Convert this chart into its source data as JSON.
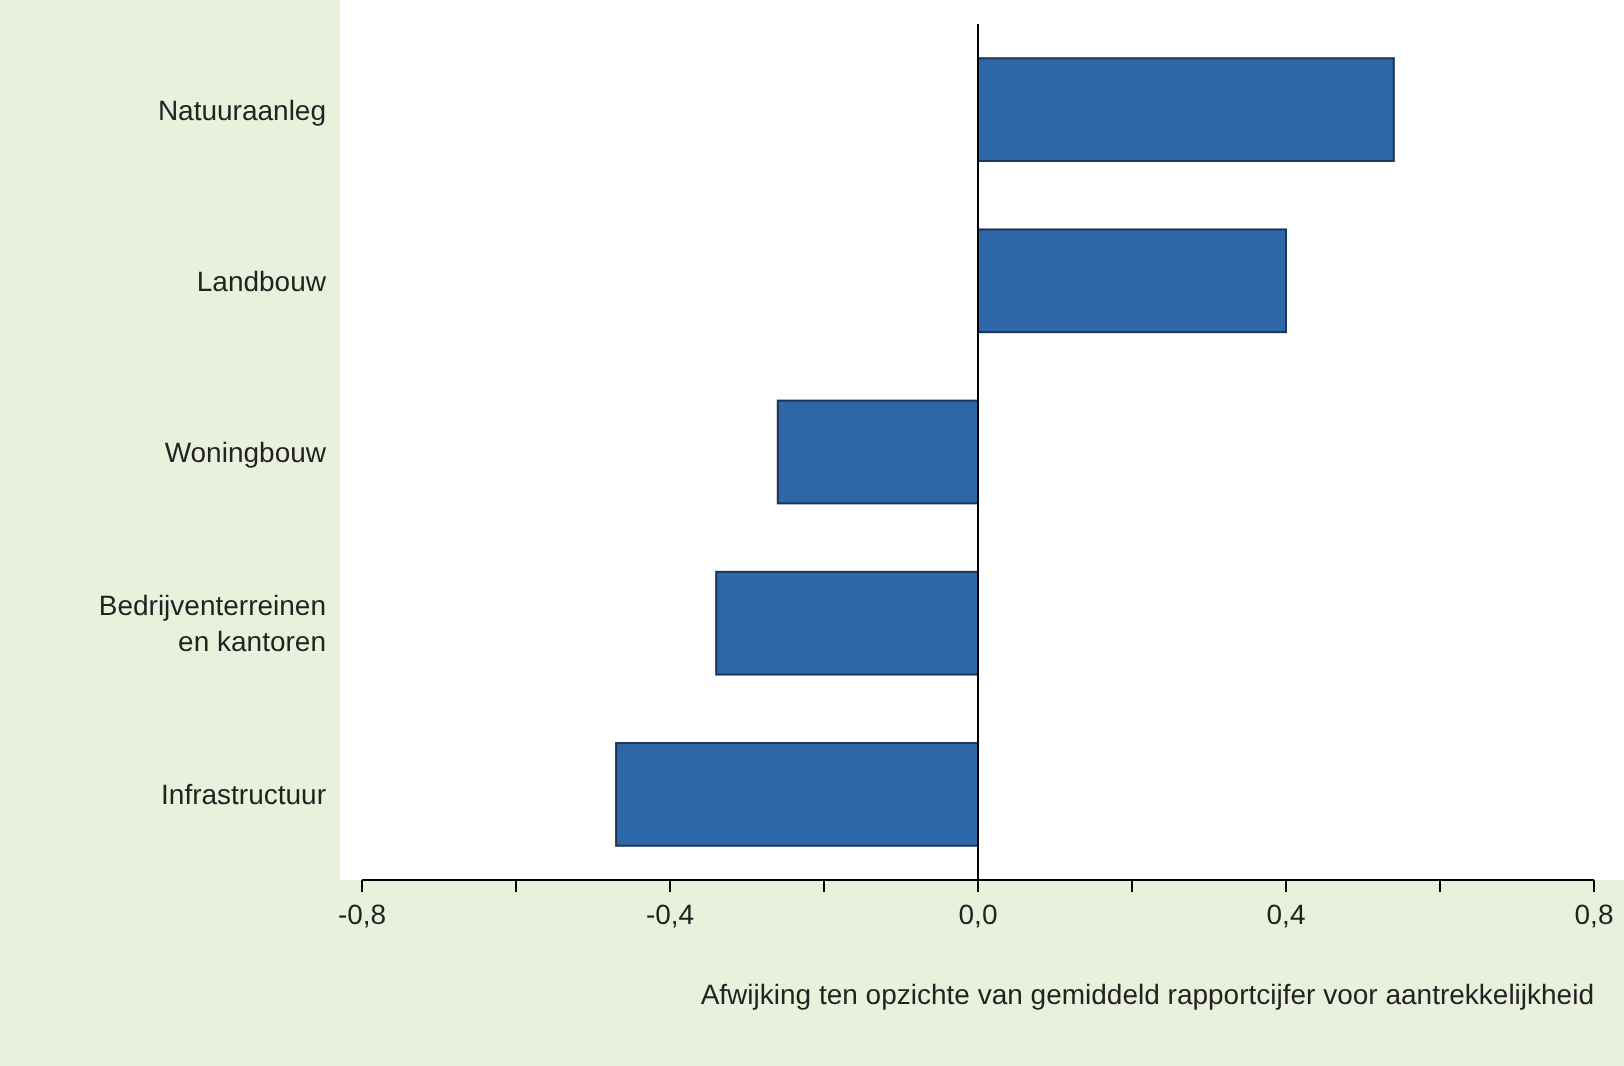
{
  "chart_data": {
    "type": "bar",
    "orientation": "horizontal",
    "xlabel": "Afwijking ten opzichte van gemiddeld rapportcijfer voor aantrekkelijkheid",
    "categories": [
      "Natuuraanleg",
      "Landbouw",
      "Woningbouw",
      "Bedrijventerreinen en kantoren",
      "Infrastructuur"
    ],
    "values": [
      0.54,
      0.4,
      -0.26,
      -0.34,
      -0.47
    ],
    "color": "#2e67a8",
    "xlim": [
      -0.8,
      0.8
    ],
    "xticks": [
      {
        "value": -0.8,
        "label": "-0,8"
      },
      {
        "value": -0.6,
        "label": null
      },
      {
        "value": -0.4,
        "label": "-0,4"
      },
      {
        "value": -0.2,
        "label": null
      },
      {
        "value": 0,
        "label": "0,0"
      },
      {
        "value": 0.2,
        "label": null
      },
      {
        "value": 0.4,
        "label": "0,4"
      },
      {
        "value": 0.6,
        "label": null
      },
      {
        "value": 0.8,
        "label": "0,8"
      }
    ],
    "data_labels": false
  }
}
